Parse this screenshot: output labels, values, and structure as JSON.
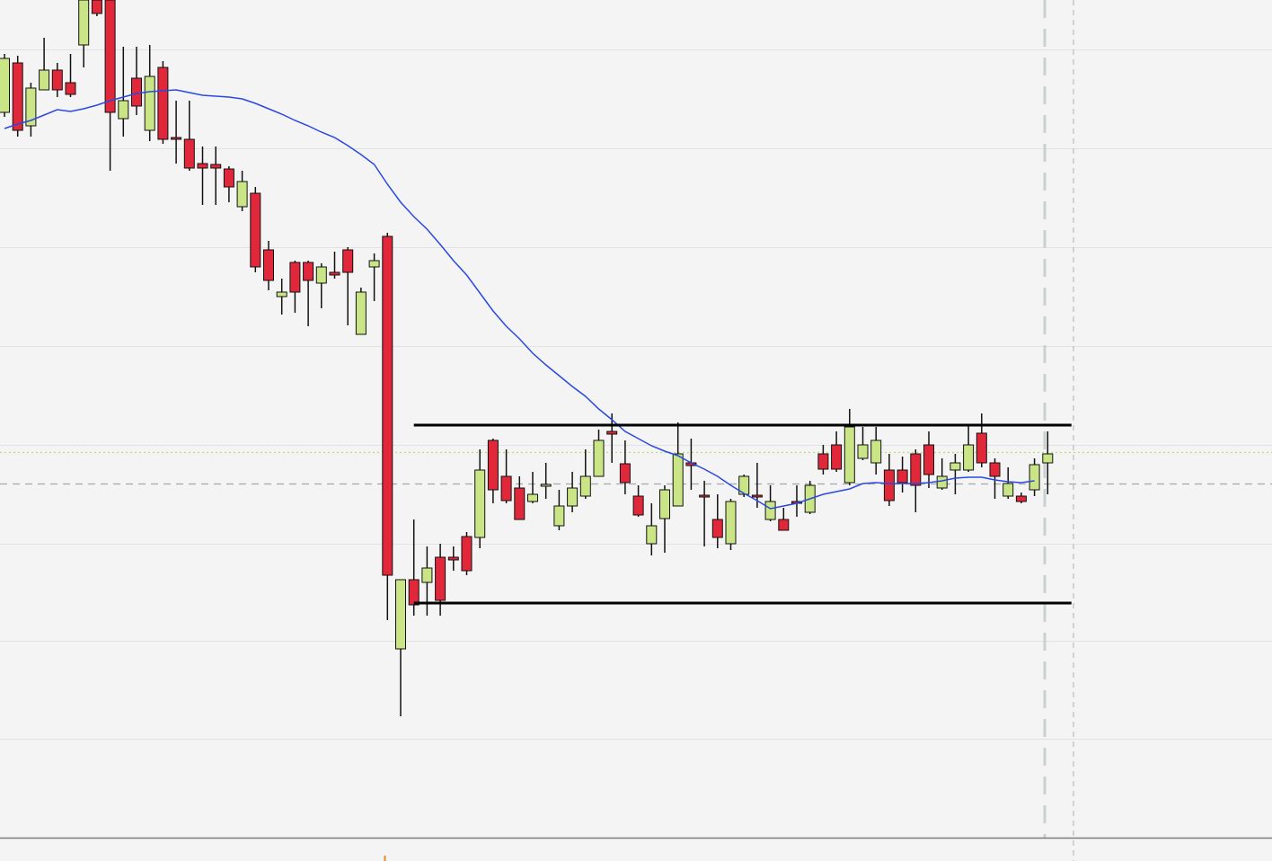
{
  "chart_data": {
    "type": "candlestick",
    "open": [
      807,
      862,
      792,
      832,
      854,
      840,
      882,
      932,
      932,
      800,
      845,
      787,
      857,
      779,
      777,
      750,
      749,
      744,
      702,
      717,
      654,
      602,
      640,
      640,
      617,
      629,
      654,
      560,
      635,
      669,
      210,
      287,
      284,
      312,
      312,
      335,
      334,
      442,
      402,
      389,
      374,
      391,
      347,
      369,
      380,
      402,
      452,
      416,
      380,
      327,
      355,
      369,
      417,
      381,
      354,
      327,
      382,
      381,
      354,
      354,
      374,
      362,
      427,
      437,
      395,
      422,
      417,
      409,
      409,
      427,
      437,
      389,
      409,
      409,
      450,
      417,
      380,
      380,
      387,
      417
    ],
    "high": [
      872,
      870,
      840,
      890,
      862,
      872,
      942,
      942,
      942,
      880,
      880,
      882,
      864,
      820,
      820,
      769,
      769,
      747,
      742,
      724,
      664,
      622,
      642,
      642,
      639,
      652,
      657,
      612,
      650,
      673,
      287,
      354,
      324,
      327,
      324,
      340,
      432,
      444,
      432,
      402,
      407,
      417,
      387,
      407,
      432,
      454,
      472,
      442,
      392,
      372,
      392,
      462,
      444,
      397,
      382,
      377,
      404,
      417,
      392,
      367,
      392,
      397,
      437,
      452,
      477,
      457,
      457,
      427,
      424,
      432,
      452,
      422,
      427,
      460,
      472,
      422,
      412,
      384,
      422,
      452
    ],
    "low": [
      802,
      780,
      780,
      832,
      824,
      824,
      857,
      914,
      742,
      780,
      804,
      775,
      772,
      750,
      742,
      704,
      704,
      707,
      697,
      629,
      609,
      582,
      584,
      569,
      589,
      622,
      570,
      560,
      597,
      242,
      135,
      247,
      247,
      247,
      297,
      292,
      322,
      372,
      372,
      354,
      372,
      377,
      342,
      362,
      377,
      402,
      417,
      382,
      357,
      314,
      317,
      369,
      387,
      324,
      322,
      320,
      379,
      367,
      352,
      342,
      357,
      360,
      404,
      407,
      392,
      420,
      404,
      369,
      384,
      362,
      389,
      387,
      382,
      407,
      412,
      377,
      377,
      372,
      380,
      382
    ],
    "close": [
      867,
      787,
      834,
      854,
      832,
      827,
      932,
      917,
      807,
      820,
      814,
      847,
      777,
      777,
      745,
      745,
      745,
      724,
      730,
      635,
      620,
      607,
      607,
      620,
      635,
      626,
      629,
      607,
      642,
      292,
      287,
      259,
      300,
      264,
      309,
      297,
      409,
      387,
      375,
      354,
      382,
      393,
      369,
      389,
      402,
      442,
      449,
      395,
      359,
      347,
      387,
      427,
      414,
      379,
      334,
      374,
      402,
      379,
      374,
      342,
      372,
      392,
      410,
      410,
      457,
      437,
      442,
      375,
      395,
      392,
      404,
      402,
      417,
      437,
      417,
      402,
      394,
      374,
      415,
      427
    ],
    "up_color": "#c9e586",
    "down_color": "#e0283a",
    "ylim": [
      0,
      932
    ],
    "grid_lines": [
      877,
      767,
      657,
      547,
      437,
      327,
      219,
      110
    ],
    "moving_average": {
      "color": "#2a48e2",
      "values": [
        789,
        794,
        798,
        804,
        810,
        808,
        811,
        815,
        820,
        824,
        828,
        830,
        831,
        832,
        829,
        826,
        825,
        824,
        822,
        817,
        811,
        805,
        798,
        792,
        785,
        779,
        770,
        760,
        749,
        727,
        707,
        691,
        677,
        660,
        642,
        626,
        606,
        586,
        569,
        555,
        539,
        526,
        514,
        502,
        491,
        477,
        465,
        452,
        444,
        436,
        430,
        425,
        417,
        410,
        402,
        392,
        383,
        375,
        366,
        369,
        372,
        377,
        382,
        385,
        388,
        394,
        395,
        394,
        394,
        394,
        395,
        397,
        400,
        401,
        401,
        398,
        396,
        395,
        397,
        null
      ]
    },
    "levels": [
      {
        "value": 459,
        "from": 31,
        "to": 80.8
      },
      {
        "value": 261,
        "from": 31,
        "to": 80.8
      }
    ],
    "reference_lines": [
      {
        "value": 394,
        "color": "#a8a8a8",
        "style": "dashed"
      },
      {
        "value": 429,
        "color": "#b9dc6e",
        "style": "dotted"
      }
    ]
  }
}
